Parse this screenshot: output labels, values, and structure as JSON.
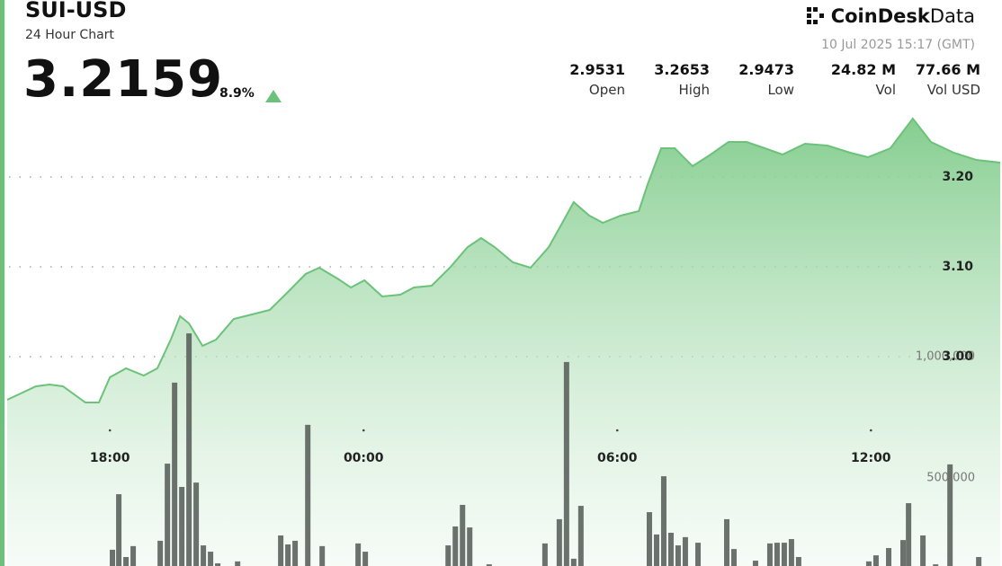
{
  "header": {
    "title": "SUI-USD",
    "subtitle": "24 Hour Chart",
    "price": "3.2159",
    "change": "8.9%",
    "brand": "CoinDesk",
    "brand_suffix": "Data",
    "timestamp": "10 Jul 2025 15:17 (GMT)",
    "stats": [
      {
        "value": "2.9531",
        "label": "Open"
      },
      {
        "value": "3.2653",
        "label": "High"
      },
      {
        "value": "2.9473",
        "label": "Low"
      },
      {
        "value": "24.82 M",
        "label": "Vol"
      },
      {
        "value": "77.66 M",
        "label": "Vol USD"
      }
    ]
  },
  "chart_data": {
    "type": "line",
    "xlim": [
      15.4,
      39.1
    ],
    "xticks": [
      {
        "value": 18,
        "label": "18:00"
      },
      {
        "value": 24,
        "label": "00:00"
      },
      {
        "value": 30,
        "label": "06:00"
      },
      {
        "value": 36,
        "label": "12:00"
      }
    ],
    "ylim": [
      2.767,
      3.277
    ],
    "yticks": [
      {
        "value": 3.2,
        "label": "3.20"
      },
      {
        "value": 3.1,
        "label": "3.10"
      },
      {
        "value": 3.0,
        "label": "3.00"
      }
    ],
    "y2lim": [
      137000,
      2026000
    ],
    "y2ticks": [
      {
        "value": 1000000,
        "label": "1,000,000"
      },
      {
        "value": 500000,
        "label": "500,000"
      }
    ],
    "grid": true,
    "series": [
      {
        "type": "line",
        "color": "#6cc27a",
        "x": [
          15.57,
          16.25,
          16.57,
          16.89,
          17.42,
          17.74,
          18,
          18.38,
          18.8,
          19.12,
          19.44,
          19.66,
          19.87,
          20.19,
          20.51,
          20.93,
          21.36,
          21.78,
          22.21,
          22.63,
          22.95,
          23.38,
          23.7,
          24.02,
          24.44,
          24.87,
          25.19,
          25.61,
          26.04,
          26.46,
          26.78,
          27.1,
          27.53,
          27.95,
          28.38,
          28.7,
          28.97,
          29.34,
          29.66,
          30.08,
          30.51,
          30.72,
          31.04,
          31.36,
          31.78,
          32.21,
          32.63,
          33.06,
          33.49,
          33.91,
          34.44,
          34.97,
          35.51,
          35.93,
          36.46,
          36.99,
          37.42,
          37.96,
          38.49,
          39.06
        ],
        "values": [
          2.952,
          2.967,
          2.969,
          2.967,
          2.949,
          2.949,
          2.977,
          2.987,
          2.979,
          2.987,
          3.019,
          3.045,
          3.037,
          3.012,
          3.019,
          3.042,
          3.047,
          3.052,
          3.072,
          3.092,
          3.099,
          3.087,
          3.077,
          3.085,
          3.067,
          3.069,
          3.077,
          3.079,
          3.099,
          3.122,
          3.132,
          3.122,
          3.105,
          3.099,
          3.122,
          3.149,
          3.172,
          3.157,
          3.149,
          3.157,
          3.162,
          3.192,
          3.232,
          3.232,
          3.212,
          3.225,
          3.239,
          3.239,
          3.232,
          3.225,
          3.237,
          3.235,
          3.227,
          3.222,
          3.232,
          3.265,
          3.239,
          3.227,
          3.219,
          3.216
        ]
      },
      {
        "type": "bar",
        "axis": "y2",
        "color": "#5c625d",
        "x": [
          18.06,
          18.21,
          18.38,
          18.55,
          19.19,
          19.36,
          19.53,
          19.7,
          19.87,
          20.04,
          20.21,
          20.38,
          20.55,
          21.02,
          22.04,
          22.21,
          22.38,
          22.68,
          23.02,
          23.87,
          24.04,
          26.0,
          26.17,
          26.34,
          26.51,
          26.97,
          28.29,
          28.63,
          28.8,
          28.97,
          29.14,
          30.76,
          30.93,
          31.1,
          31.27,
          31.44,
          31.61,
          31.91,
          32.59,
          32.76,
          33.27,
          33.61,
          33.78,
          33.95,
          34.12,
          34.29,
          35.95,
          36.12,
          36.42,
          36.76,
          36.89,
          37.23,
          37.53,
          37.87,
          38.55
        ],
        "values": [
          204000,
          433000,
          174000,
          219000,
          241000,
          559000,
          893000,
          463000,
          1096000,
          481000,
          222000,
          196000,
          148000,
          156000,
          263000,
          226000,
          241000,
          719000,
          219000,
          230000,
          196000,
          222000,
          300000,
          389000,
          296000,
          144000,
          230000,
          330000,
          978000,
          167000,
          385000,
          359000,
          267000,
          507000,
          274000,
          222000,
          256000,
          233000,
          330000,
          207000,
          159000,
          230000,
          233000,
          233000,
          248000,
          174000,
          156000,
          181000,
          211000,
          244000,
          396000,
          263000,
          144000,
          556000,
          174000
        ]
      }
    ]
  }
}
